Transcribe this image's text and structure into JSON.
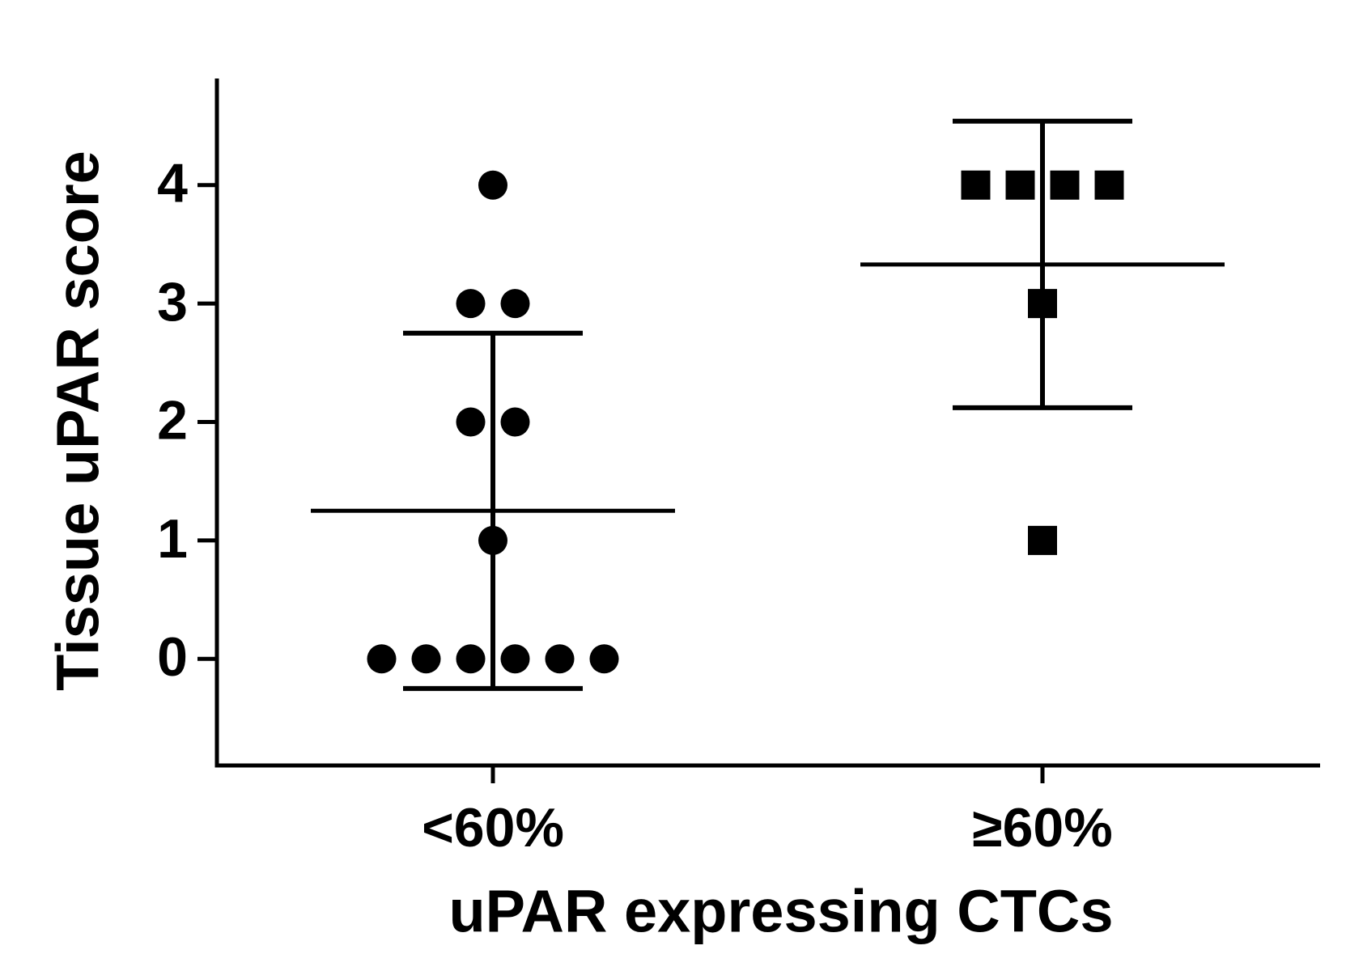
{
  "chart_data": {
    "type": "dot",
    "y_label": "Tissue uPAR score",
    "x_label": "uPAR expressing CTCs",
    "categories": [
      "<60%",
      "≥60%"
    ],
    "groups": [
      {
        "marker": "circle",
        "values": [
          4,
          3,
          3,
          2,
          2,
          1,
          0,
          0,
          0,
          0,
          0,
          0
        ],
        "mean": 1.25,
        "sd": 1.5
      },
      {
        "marker": "square",
        "values": [
          4,
          4,
          4,
          4,
          3,
          1
        ],
        "mean": 3.33,
        "sd": 1.21
      }
    ],
    "color": "#000000",
    "ylim": [
      -0.9,
      4.9
    ],
    "yticks": [
      0,
      1,
      2,
      3,
      4
    ]
  }
}
